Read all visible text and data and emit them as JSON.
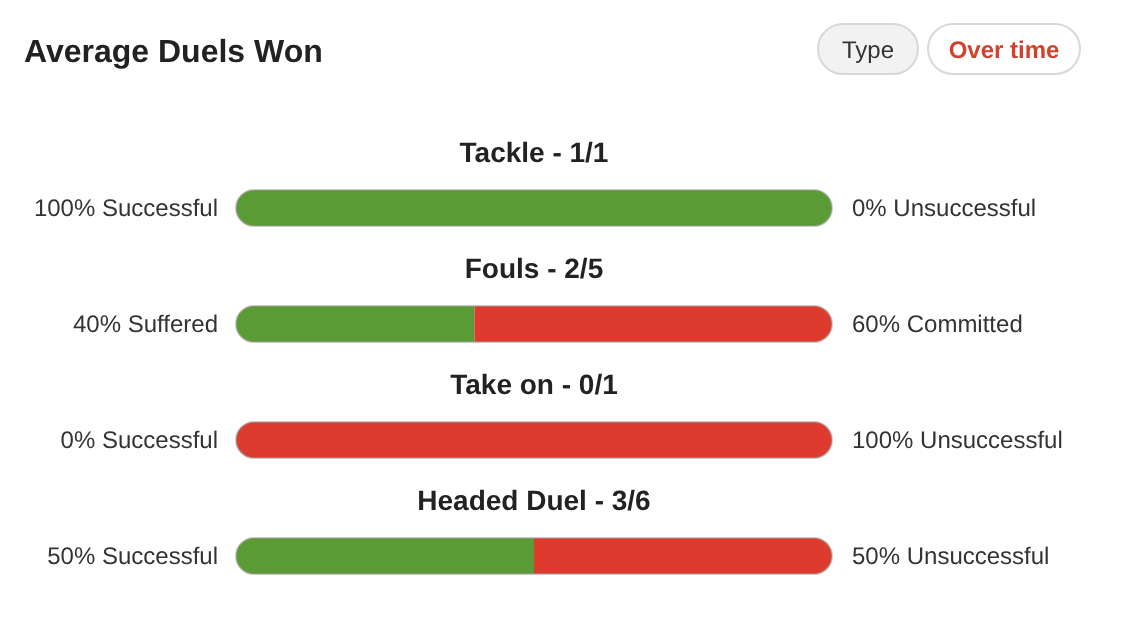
{
  "chart_data": {
    "type": "bar",
    "title": "Average Duels Won",
    "orientation": "horizontal",
    "stacked": true,
    "tick_labels": false,
    "xlim": [
      0,
      100
    ],
    "categories": [
      "Tackle - 1/1",
      "Fouls - 2/5",
      "Take on - 0/1",
      "Headed Duel - 3/6"
    ],
    "series": [
      {
        "color": "#5b9b35",
        "values": [
          100,
          40,
          0,
          50
        ],
        "value_labels": [
          "100% Successful",
          "40% Suffered",
          "0% Successful",
          "50% Successful"
        ]
      },
      {
        "color": "#de3a2e",
        "values": [
          0,
          60,
          100,
          50
        ],
        "value_labels": [
          "0% Unsuccessful",
          "60% Committed",
          "100% Unsuccessful",
          "50% Unsuccessful"
        ]
      }
    ],
    "annotations": [
      "Type",
      "Over time"
    ]
  }
}
